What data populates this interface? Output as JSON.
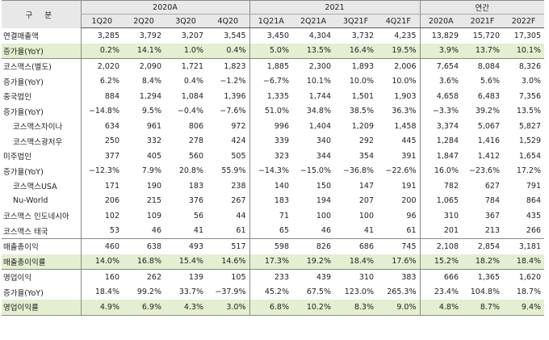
{
  "header": {
    "corner": "구 분",
    "groups": [
      "2020A",
      "2021",
      "연간"
    ],
    "columns": [
      "1Q20",
      "2Q20",
      "3Q20",
      "4Q20",
      "1Q21A",
      "2Q21A",
      "3Q21F",
      "4Q21F",
      "2020A",
      "2021F",
      "2022F"
    ]
  },
  "rows": [
    {
      "label": "연결매출액",
      "values": [
        "3,285",
        "3,792",
        "3,207",
        "3,545",
        "3,450",
        "4,304",
        "3,732",
        "4,235",
        "13,829",
        "15,720",
        "17,305"
      ]
    },
    {
      "label": "증가율(YoY)",
      "values": [
        "0.2%",
        "14.1%",
        "1.0%",
        "0.4%",
        "5.0%",
        "13.5%",
        "16.4%",
        "19.5%",
        "3.9%",
        "13.7%",
        "10.1%"
      ]
    },
    {
      "label": "코스맥스(별도)",
      "values": [
        "2,020",
        "2,090",
        "1,721",
        "1,823",
        "1,885",
        "2,300",
        "1,893",
        "2,006",
        "7,654",
        "8,084",
        "8,326"
      ]
    },
    {
      "label": "증가율(YoY)",
      "values": [
        "6.2%",
        "8.4%",
        "0.4%",
        "−1.2%",
        "−6.7%",
        "10.1%",
        "10.0%",
        "10.0%",
        "3.6%",
        "5.6%",
        "3.0%"
      ]
    },
    {
      "label": "중국법인",
      "values": [
        "884",
        "1,294",
        "1,084",
        "1,396",
        "1,335",
        "1,744",
        "1,501",
        "1,903",
        "4,658",
        "6,483",
        "7,356"
      ]
    },
    {
      "label": "증가율(YoY)",
      "values": [
        "−14.8%",
        "9.5%",
        "−0.4%",
        "−7.6%",
        "51.0%",
        "34.8%",
        "38.5%",
        "36.3%",
        "−3.3%",
        "39.2%",
        "13.5%"
      ]
    },
    {
      "label": "코스맥스차이나",
      "values": [
        "634",
        "961",
        "806",
        "972",
        "996",
        "1,404",
        "1,209",
        "1,458",
        "3,374",
        "5,067",
        "5,827"
      ]
    },
    {
      "label": "코스맥스광저우",
      "values": [
        "250",
        "332",
        "278",
        "424",
        "339",
        "340",
        "292",
        "445",
        "1,284",
        "1,416",
        "1,529"
      ]
    },
    {
      "label": "미주법인",
      "values": [
        "377",
        "405",
        "560",
        "505",
        "323",
        "344",
        "354",
        "391",
        "1,847",
        "1,412",
        "1,654"
      ]
    },
    {
      "label": "증가율(YoY)",
      "values": [
        "−12.3%",
        "7.9%",
        "20.8%",
        "55.9%",
        "−14.3%",
        "−15.0%",
        "−36.8%",
        "−22.6%",
        "16.0%",
        "−23.6%",
        "17.2%"
      ]
    },
    {
      "label": "코스맥스USA",
      "values": [
        "171",
        "190",
        "183",
        "238",
        "140",
        "150",
        "147",
        "191",
        "782",
        "627",
        "791"
      ]
    },
    {
      "label": "Nu-World",
      "values": [
        "206",
        "215",
        "376",
        "267",
        "183",
        "194",
        "207",
        "200",
        "1,065",
        "784",
        "864"
      ]
    },
    {
      "label": "코스맥스 인도네시아",
      "values": [
        "102",
        "109",
        "56",
        "44",
        "71",
        "100",
        "100",
        "96",
        "310",
        "367",
        "435"
      ]
    },
    {
      "label": "코스맥스 태국",
      "values": [
        "53",
        "46",
        "41",
        "61",
        "65",
        "46",
        "41",
        "61",
        "201",
        "213",
        "266"
      ]
    },
    {
      "label": "매출총이익",
      "values": [
        "460",
        "638",
        "493",
        "517",
        "598",
        "826",
        "686",
        "745",
        "2,108",
        "2,854",
        "3,181"
      ]
    },
    {
      "label": "매출총이익률",
      "values": [
        "14.0%",
        "16.8%",
        "15.4%",
        "14.6%",
        "17.3%",
        "19.2%",
        "18.4%",
        "17.6%",
        "15.2%",
        "18.2%",
        "18.4%"
      ]
    },
    {
      "label": "영업이익",
      "values": [
        "160",
        "262",
        "139",
        "105",
        "233",
        "439",
        "310",
        "383",
        "666",
        "1,365",
        "1,620"
      ]
    },
    {
      "label": "증가율(YoY)",
      "values": [
        "18.4%",
        "99.2%",
        "33.7%",
        "−37.9%",
        "45.2%",
        "67.5%",
        "123.0%",
        "265.3%",
        "23.4%",
        "104.8%",
        "18.7%"
      ]
    },
    {
      "label": "영업이익률",
      "values": [
        "4.9%",
        "6.9%",
        "4.3%",
        "3.0%",
        "6.8%",
        "10.2%",
        "8.3%",
        "9.0%",
        "4.8%",
        "8.7%",
        "9.4%"
      ]
    }
  ],
  "colors": {
    "header_bg": "#e8e8e8",
    "highlight_bg": "#e3efd0"
  }
}
